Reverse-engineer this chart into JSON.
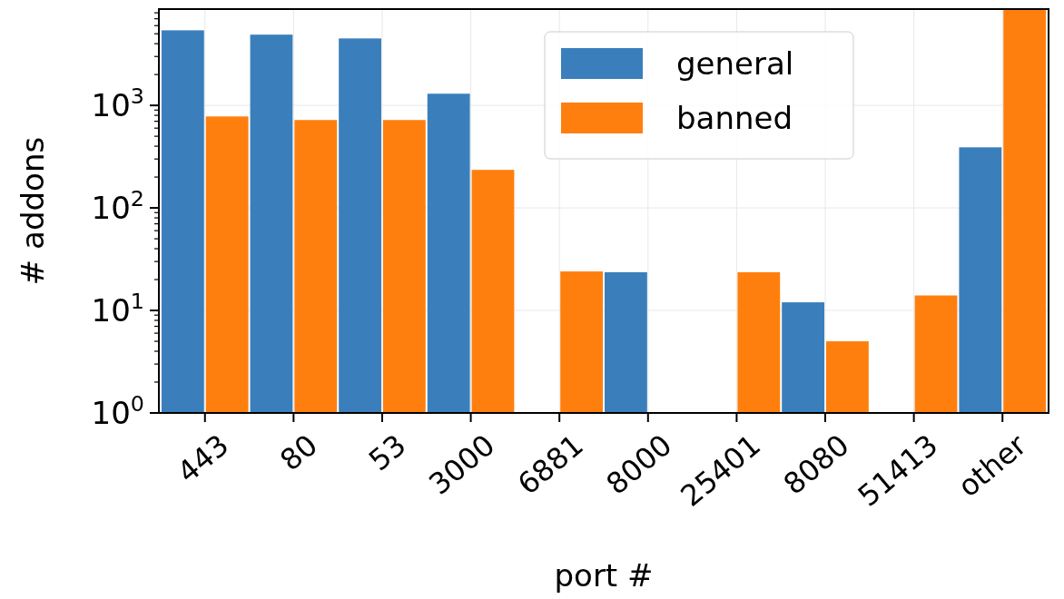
{
  "chart_data": {
    "type": "bar",
    "xlabel": "port #",
    "ylabel": "# addons",
    "categories": [
      "443",
      "80",
      "53",
      "3000",
      "6881",
      "8000",
      "25401",
      "8080",
      "51413",
      "other"
    ],
    "series": [
      {
        "name": "general",
        "color": "#3a7fbc",
        "values": [
          5400,
          4900,
          4500,
          1300,
          null,
          23.6,
          null,
          12,
          null,
          390
        ]
      },
      {
        "name": "banned",
        "color": "#ff7f0e",
        "values": [
          780,
          720,
          720,
          235,
          24,
          null,
          23.6,
          5,
          14,
          8700
        ]
      }
    ],
    "log": true,
    "ylim": [
      1,
      8700
    ],
    "yticks": [
      {
        "value": 1,
        "label": "10$^{0}$"
      },
      {
        "value": 2,
        "label": null
      },
      {
        "value": 3,
        "label": null
      },
      {
        "value": 4,
        "label": null
      },
      {
        "value": 5,
        "label": null
      },
      {
        "value": 6,
        "label": null
      },
      {
        "value": 7,
        "label": null
      },
      {
        "value": 8,
        "label": null
      },
      {
        "value": 9,
        "label": null
      },
      {
        "value": 10,
        "label": "10$^{1}$"
      },
      {
        "value": 20,
        "label": null
      },
      {
        "value": 30,
        "label": null
      },
      {
        "value": 40,
        "label": null
      },
      {
        "value": 50,
        "label": null
      },
      {
        "value": 60,
        "label": null
      },
      {
        "value": 70,
        "label": null
      },
      {
        "value": 80,
        "label": null
      },
      {
        "value": 90,
        "label": null
      },
      {
        "value": 100,
        "label": "10$^{2}$"
      },
      {
        "value": 200,
        "label": null
      },
      {
        "value": 300,
        "label": null
      },
      {
        "value": 400,
        "label": null
      },
      {
        "value": 500,
        "label": null
      },
      {
        "value": 600,
        "label": null
      },
      {
        "value": 700,
        "label": null
      },
      {
        "value": 800,
        "label": null
      },
      {
        "value": 900,
        "label": null
      },
      {
        "value": 1000,
        "label": "10$^{3}$"
      },
      {
        "value": 2000,
        "label": null
      },
      {
        "value": 3000,
        "label": null
      },
      {
        "value": 4000,
        "label": null
      },
      {
        "value": 5000,
        "label": null
      },
      {
        "value": 6000,
        "label": null
      },
      {
        "value": 7000,
        "label": null
      },
      {
        "value": 8000,
        "label": null
      }
    ],
    "grid": true,
    "legend": "top"
  }
}
